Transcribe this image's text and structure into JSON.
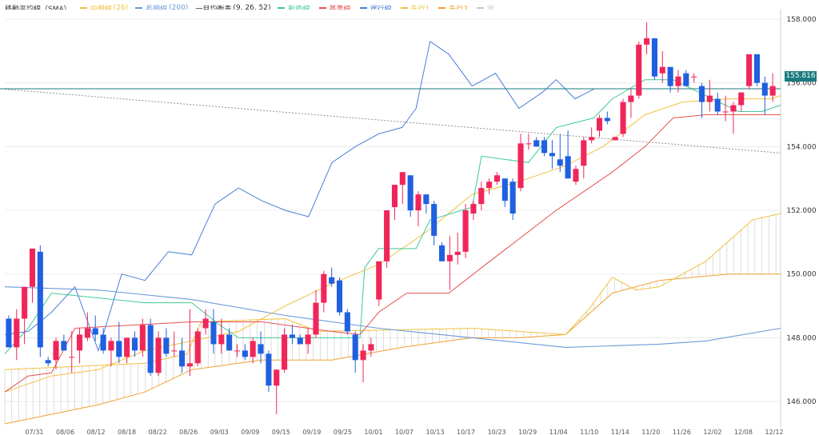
{
  "legend": {
    "title": "移動平均線（SMA）",
    "items": [
      {
        "name": "中期線",
        "param": "(26)",
        "color": "#f0c040"
      },
      {
        "name": "長期線",
        "param": "(200)",
        "color": "#6b9ad8"
      },
      {
        "name": "一目均衡表",
        "param": "(9, 26, 52)",
        "color": "#444444",
        "noswatch": true
      },
      {
        "name": "転換線",
        "param": "",
        "color": "#3fc89a"
      },
      {
        "name": "基準線",
        "param": "",
        "color": "#e85050"
      },
      {
        "name": "遅行線",
        "param": "",
        "color": "#4a7fd8"
      },
      {
        "name": "先行1",
        "param": "",
        "color": "#f0c040"
      },
      {
        "name": "先行2",
        "param": "",
        "color": "#f0a030"
      },
      {
        "name": "雲",
        "param": "",
        "color": "#c8c8c8"
      }
    ]
  },
  "current_price": "155.816",
  "colors": {
    "up": "#f0265a",
    "down": "#2060e0",
    "sma26": "#f0c040",
    "sma200": "#6b9ad8",
    "tenkan": "#3fc89a",
    "kijun": "#e85050",
    "chikou": "#4a7fd8",
    "senkou1": "#f0c040",
    "senkou2": "#f0a030",
    "cloud": "#b0b0b0",
    "price_line": "#1a7a80",
    "trend_line": "#909090"
  },
  "chart_data": {
    "type": "candlestick",
    "y_ticks": [
      "158.000",
      "156.000",
      "154.000",
      "152.000",
      "150.000",
      "148.000",
      "146.000"
    ],
    "ylim": [
      145.2,
      158.3
    ],
    "x_ticks": [
      "07/31",
      "08/06",
      "08/12",
      "08/18",
      "08/22",
      "08/26",
      "09/03",
      "09/09",
      "09/15",
      "09/19",
      "09/25",
      "10/01",
      "10/07",
      "10/13",
      "10/17",
      "10/23",
      "10/29",
      "11/04",
      "11/10",
      "11/14",
      "11/20",
      "11/26",
      "12/02",
      "12/08",
      "12/12"
    ],
    "candles": [
      [
        148.6,
        148.7,
        147.7,
        147.7
      ],
      [
        147.7,
        148.9,
        147.3,
        148.6
      ],
      [
        148.6,
        149.6,
        147.8,
        149.6
      ],
      [
        149.6,
        150.8,
        149.1,
        150.8
      ],
      [
        150.7,
        150.9,
        147.4,
        147.7
      ],
      [
        147.3,
        147.4,
        147.1,
        147.2
      ],
      [
        147.3,
        148.0,
        147.0,
        147.9
      ],
      [
        147.9,
        148.1,
        147.6,
        147.6
      ],
      [
        147.4,
        148.2,
        146.9,
        147.4
      ],
      [
        147.6,
        148.3,
        147.2,
        148.1
      ],
      [
        148.0,
        148.8,
        147.9,
        148.3
      ],
      [
        148.3,
        148.7,
        147.9,
        148.1
      ],
      [
        148.1,
        148.3,
        147.5,
        147.6
      ],
      [
        147.6,
        148.0,
        147.1,
        147.9
      ],
      [
        147.9,
        148.5,
        147.2,
        147.4
      ],
      [
        147.4,
        148.0,
        147.2,
        148.0
      ],
      [
        148.0,
        148.2,
        147.4,
        147.6
      ],
      [
        147.6,
        148.6,
        147.4,
        148.4
      ],
      [
        148.4,
        148.6,
        146.8,
        146.9
      ],
      [
        146.9,
        148.2,
        146.8,
        148.0
      ],
      [
        148.0,
        148.3,
        147.4,
        147.5
      ],
      [
        147.6,
        148.2,
        147.4,
        147.6
      ],
      [
        147.6,
        148.0,
        146.9,
        147.1
      ],
      [
        147.1,
        148.9,
        146.8,
        147.2
      ],
      [
        147.2,
        148.3,
        147.1,
        148.2
      ],
      [
        148.3,
        148.9,
        148.1,
        148.6
      ],
      [
        148.5,
        148.9,
        147.5,
        147.8
      ],
      [
        147.8,
        148.6,
        147.5,
        148.1
      ],
      [
        148.1,
        148.3,
        147.6,
        147.6
      ],
      [
        147.6,
        147.8,
        147.4,
        147.6
      ],
      [
        147.6,
        147.8,
        147.3,
        147.4
      ],
      [
        147.4,
        148.0,
        147.2,
        147.9
      ],
      [
        147.8,
        148.2,
        147.2,
        147.5
      ],
      [
        147.5,
        147.6,
        146.3,
        146.5
      ],
      [
        146.5,
        147.0,
        145.6,
        147.0
      ],
      [
        147.0,
        148.3,
        146.9,
        148.1
      ],
      [
        148.1,
        148.4,
        147.8,
        148.0
      ],
      [
        148.0,
        148.1,
        147.8,
        147.8
      ],
      [
        147.8,
        148.3,
        147.5,
        148.1
      ],
      [
        148.1,
        149.5,
        148.0,
        149.1
      ],
      [
        149.1,
        150.1,
        148.8,
        150.0
      ],
      [
        149.9,
        150.2,
        149.6,
        149.7
      ],
      [
        149.8,
        149.9,
        148.7,
        148.8
      ],
      [
        148.8,
        148.9,
        148.1,
        148.2
      ],
      [
        148.1,
        148.2,
        146.9,
        147.3
      ],
      [
        147.3,
        147.8,
        146.6,
        147.6
      ],
      [
        147.6,
        148.0,
        147.4,
        147.8
      ],
      [
        149.2,
        150.4,
        149.0,
        150.4
      ],
      [
        150.4,
        152.0,
        150.2,
        152.0
      ],
      [
        152.1,
        152.8,
        151.7,
        152.8
      ],
      [
        152.8,
        153.2,
        152.2,
        153.2
      ],
      [
        153.1,
        153.1,
        151.8,
        152.0
      ],
      [
        152.0,
        152.6,
        151.5,
        152.5
      ],
      [
        152.5,
        152.5,
        151.9,
        152.2
      ],
      [
        152.2,
        152.3,
        150.9,
        151.2
      ],
      [
        150.9,
        151.0,
        150.4,
        150.4
      ],
      [
        150.4,
        151.2,
        149.5,
        150.6
      ],
      [
        150.6,
        151.3,
        150.3,
        150.7
      ],
      [
        150.7,
        152.2,
        150.5,
        152.0
      ],
      [
        151.9,
        152.3,
        151.7,
        152.2
      ],
      [
        152.2,
        152.9,
        152.0,
        152.7
      ],
      [
        152.7,
        153.0,
        152.5,
        152.9
      ],
      [
        152.9,
        153.2,
        152.8,
        153.1
      ],
      [
        153.0,
        153.0,
        152.1,
        152.3
      ],
      [
        152.9,
        153.0,
        151.7,
        151.9
      ],
      [
        152.7,
        154.4,
        152.6,
        154.1
      ],
      [
        154.1,
        154.4,
        153.9,
        154.1
      ],
      [
        154.2,
        154.3,
        154.0,
        154.0
      ],
      [
        154.2,
        154.3,
        153.7,
        153.8
      ],
      [
        153.8,
        154.2,
        153.3,
        153.7
      ],
      [
        153.6,
        154.4,
        153.2,
        153.4
      ],
      [
        153.7,
        154.5,
        153.0,
        153.0
      ],
      [
        152.9,
        153.4,
        152.8,
        153.3
      ],
      [
        153.4,
        154.3,
        153.0,
        154.2
      ],
      [
        154.2,
        154.6,
        154.1,
        154.3
      ],
      [
        154.5,
        155.0,
        154.3,
        154.9
      ],
      [
        154.9,
        155.1,
        154.7,
        154.8
      ],
      [
        154.2,
        154.3,
        154.2,
        154.3
      ],
      [
        154.4,
        155.5,
        154.3,
        155.4
      ],
      [
        155.4,
        155.8,
        154.9,
        155.6
      ],
      [
        155.6,
        157.3,
        155.5,
        157.2
      ],
      [
        157.2,
        157.9,
        156.9,
        157.4
      ],
      [
        157.4,
        157.4,
        156.1,
        156.2
      ],
      [
        156.3,
        157.0,
        156.0,
        156.5
      ],
      [
        156.5,
        156.5,
        155.7,
        155.9
      ],
      [
        155.9,
        156.4,
        155.7,
        156.2
      ],
      [
        156.3,
        156.4,
        155.9,
        155.9
      ],
      [
        156.2,
        156.3,
        156.0,
        156.2
      ],
      [
        155.9,
        156.0,
        154.9,
        155.4
      ],
      [
        155.4,
        156.1,
        155.1,
        155.6
      ],
      [
        155.5,
        155.7,
        155.0,
        155.1
      ],
      [
        155.1,
        155.6,
        154.8,
        155.1
      ],
      [
        155.1,
        155.4,
        154.4,
        155.3
      ],
      [
        155.3,
        155.7,
        155.1,
        155.7
      ],
      [
        155.9,
        156.9,
        155.8,
        156.9
      ],
      [
        156.9,
        156.9,
        155.9,
        156.0
      ],
      [
        156.0,
        156.2,
        155.0,
        155.6
      ],
      [
        155.6,
        156.3,
        155.4,
        155.9
      ]
    ],
    "sma26": [
      [
        0,
        146.3
      ],
      [
        10,
        146.8
      ],
      [
        20,
        147.0
      ],
      [
        30,
        147.6
      ],
      [
        40,
        147.9
      ],
      [
        50,
        148.2
      ],
      [
        60,
        149.0
      ],
      [
        70,
        149.7
      ],
      [
        80,
        150.3
      ],
      [
        90,
        151.3
      ],
      [
        100,
        152.5
      ],
      [
        110,
        152.9
      ],
      [
        120,
        153.4
      ],
      [
        128,
        154.0
      ],
      [
        137,
        155.0
      ],
      [
        145,
        155.4
      ],
      [
        155,
        155.5
      ],
      [
        164,
        155.5
      ],
      [
        166,
        155.6
      ]
    ],
    "sma200": [
      [
        0,
        149.6
      ],
      [
        20,
        149.5
      ],
      [
        40,
        149.2
      ],
      [
        60,
        148.7
      ],
      [
        80,
        148.3
      ],
      [
        100,
        148.0
      ],
      [
        120,
        147.7
      ],
      [
        140,
        147.8
      ],
      [
        150,
        147.9
      ],
      [
        166,
        148.3
      ]
    ],
    "tenkan": [
      [
        0,
        147.5
      ],
      [
        5,
        148.3
      ],
      [
        10,
        149.4
      ],
      [
        30,
        149.1
      ],
      [
        40,
        149.1
      ],
      [
        46,
        148.4
      ],
      [
        50,
        148.0
      ],
      [
        60,
        148.0
      ],
      [
        76,
        148.0
      ],
      [
        77,
        150.2
      ],
      [
        80,
        150.8
      ],
      [
        88,
        150.8
      ],
      [
        91,
        151.7
      ],
      [
        100,
        152.1
      ],
      [
        102,
        153.7
      ],
      [
        112,
        153.5
      ],
      [
        118,
        154.6
      ],
      [
        126,
        154.9
      ],
      [
        130,
        155.5
      ],
      [
        137,
        156.1
      ],
      [
        143,
        156.1
      ],
      [
        150,
        155.6
      ],
      [
        157,
        155.1
      ],
      [
        162,
        155.1
      ],
      [
        166,
        155.3
      ]
    ],
    "kijun": [
      [
        0,
        146.3
      ],
      [
        5,
        146.8
      ],
      [
        10,
        146.9
      ],
      [
        15,
        148.3
      ],
      [
        40,
        148.5
      ],
      [
        55,
        148.5
      ],
      [
        60,
        148.4
      ],
      [
        70,
        148.2
      ],
      [
        76,
        148.1
      ],
      [
        80,
        148.8
      ],
      [
        86,
        149.4
      ],
      [
        95,
        149.4
      ],
      [
        102,
        150.2
      ],
      [
        118,
        152.0
      ],
      [
        124,
        152.6
      ],
      [
        130,
        153.2
      ],
      [
        137,
        154.0
      ],
      [
        143,
        154.9
      ],
      [
        150,
        155.0
      ],
      [
        166,
        155.0
      ]
    ],
    "senkou1": [
      [
        0,
        147.0
      ],
      [
        30,
        147.2
      ],
      [
        39,
        147.5
      ],
      [
        42,
        148.5
      ],
      [
        60,
        148.6
      ],
      [
        67,
        148.2
      ],
      [
        100,
        148.3
      ],
      [
        120,
        148.1
      ],
      [
        125,
        148.9
      ],
      [
        130,
        149.9
      ],
      [
        135,
        149.5
      ],
      [
        140,
        149.6
      ],
      [
        150,
        150.4
      ],
      [
        160,
        151.7
      ],
      [
        166,
        151.9
      ]
    ],
    "senkou2": [
      [
        0,
        145.3
      ],
      [
        10,
        145.6
      ],
      [
        20,
        145.9
      ],
      [
        30,
        146.3
      ],
      [
        40,
        147.0
      ],
      [
        55,
        147.3
      ],
      [
        70,
        147.3
      ],
      [
        85,
        147.7
      ],
      [
        100,
        148.0
      ],
      [
        110,
        148.0
      ],
      [
        120,
        148.1
      ],
      [
        130,
        149.4
      ],
      [
        140,
        149.8
      ],
      [
        155,
        150.0
      ],
      [
        166,
        150.0
      ]
    ],
    "chikou": [
      [
        0,
        148.1
      ],
      [
        5,
        148.2
      ],
      [
        10,
        148.8
      ],
      [
        15,
        149.6
      ],
      [
        20,
        147.6
      ],
      [
        25,
        150.0
      ],
      [
        30,
        149.8
      ],
      [
        35,
        150.7
      ],
      [
        40,
        150.6
      ],
      [
        45,
        152.2
      ],
      [
        50,
        152.7
      ],
      [
        55,
        152.3
      ],
      [
        60,
        152.0
      ],
      [
        65,
        151.8
      ],
      [
        70,
        153.5
      ],
      [
        75,
        154.0
      ],
      [
        80,
        154.4
      ],
      [
        85,
        154.6
      ],
      [
        88,
        155.2
      ],
      [
        91,
        157.3
      ],
      [
        95,
        156.9
      ],
      [
        100,
        155.9
      ],
      [
        105,
        156.3
      ],
      [
        110,
        155.2
      ],
      [
        115,
        155.7
      ],
      [
        118,
        156.1
      ],
      [
        122,
        155.5
      ],
      [
        126,
        155.8
      ]
    ],
    "current_line": 155.816,
    "trend_line": [
      [
        0,
        155.8
      ],
      [
        166,
        153.8
      ]
    ]
  }
}
